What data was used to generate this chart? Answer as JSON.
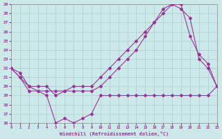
{
  "xlabel": "Windchill (Refroidissement éolien,°C)",
  "xlim": [
    0,
    23
  ],
  "ylim": [
    16,
    29
  ],
  "yticks": [
    16,
    17,
    18,
    19,
    20,
    21,
    22,
    23,
    24,
    25,
    26,
    27,
    28,
    29
  ],
  "xticks": [
    0,
    1,
    2,
    3,
    4,
    5,
    6,
    7,
    8,
    9,
    10,
    11,
    12,
    13,
    14,
    15,
    16,
    17,
    18,
    19,
    20,
    21,
    22,
    23
  ],
  "background_color": "#cce8e8",
  "grid_color": "#aacccc",
  "line_color": "#993399",
  "line1_x": [
    0,
    1,
    2,
    3,
    4,
    5,
    6,
    7,
    8,
    9,
    10,
    11,
    12,
    13,
    14,
    15,
    16,
    17,
    18,
    19,
    20,
    21,
    22,
    23
  ],
  "line1_y": [
    22,
    21.5,
    20,
    19.5,
    19,
    16,
    16.5,
    16,
    16.5,
    17,
    19,
    19,
    19,
    19,
    19,
    19,
    19,
    19,
    19,
    19,
    19,
    19,
    19,
    20
  ],
  "line2_x": [
    0,
    1,
    2,
    3,
    4,
    5,
    6,
    7,
    8,
    9,
    10,
    11,
    12,
    13,
    14,
    15,
    16,
    17,
    18,
    19,
    20,
    21,
    22,
    23
  ],
  "line2_y": [
    22,
    21,
    19.5,
    19.5,
    19.5,
    19.5,
    19.5,
    19.5,
    19.5,
    19.5,
    20,
    21,
    22,
    23,
    24,
    25.5,
    27,
    28.5,
    29,
    28.5,
    27.5,
    23,
    22,
    20
  ],
  "line3_x": [
    0,
    1,
    2,
    3,
    4,
    5,
    6,
    7,
    8,
    9,
    10,
    11,
    12,
    13,
    14,
    15,
    16,
    17,
    18,
    19,
    20,
    21,
    22,
    23
  ],
  "line3_y": [
    22,
    21,
    20,
    20,
    20,
    19,
    19.5,
    20,
    20,
    20,
    21,
    22,
    23,
    24,
    25,
    26,
    27,
    28,
    29,
    29,
    25.5,
    23.5,
    22.5,
    20
  ]
}
